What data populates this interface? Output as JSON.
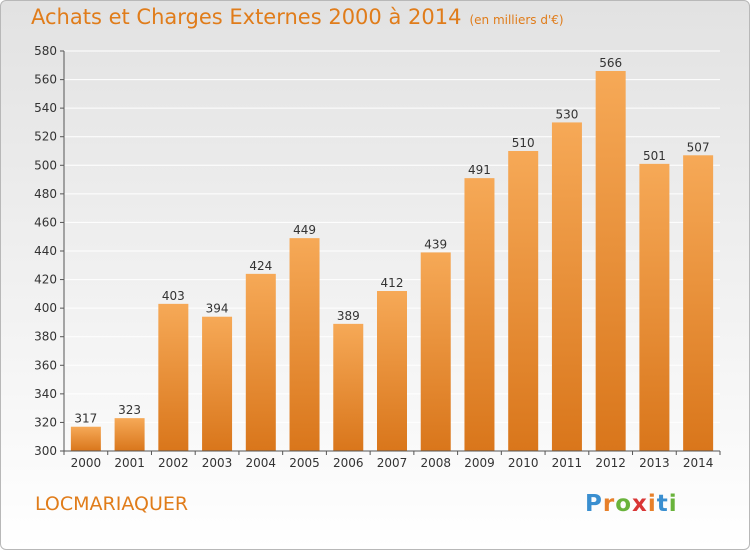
{
  "header": {
    "title": "Achats et Charges Externes 2000 à 2014",
    "subtitle": "(en milliers d'€)"
  },
  "footer": {
    "city": "LOCMARIAQUER",
    "logo_letters": [
      "P",
      "r",
      "o",
      "x",
      "i",
      "t",
      "i"
    ],
    "logo_colors": [
      "#3a8fd0",
      "#e7802a",
      "#69b33b",
      "#d93636",
      "#e7802a",
      "#3a8fd0",
      "#69b33b"
    ]
  },
  "colors": {
    "bar_top": "#f6a957",
    "bar_bottom": "#d9761b",
    "grid": "#ffffff",
    "axis_text": "#333333",
    "accent": "#e07c1a"
  },
  "chart_data": {
    "type": "bar",
    "categories": [
      "2000",
      "2001",
      "2002",
      "2003",
      "2004",
      "2005",
      "2006",
      "2007",
      "2008",
      "2009",
      "2010",
      "2011",
      "2012",
      "2013",
      "2014"
    ],
    "values": [
      317,
      323,
      403,
      394,
      424,
      449,
      389,
      412,
      439,
      491,
      510,
      530,
      566,
      501,
      507
    ],
    "ylim": [
      300,
      580
    ],
    "yticks": [
      300,
      320,
      340,
      360,
      380,
      400,
      420,
      440,
      460,
      480,
      500,
      520,
      540,
      560,
      580
    ],
    "grid": true
  }
}
